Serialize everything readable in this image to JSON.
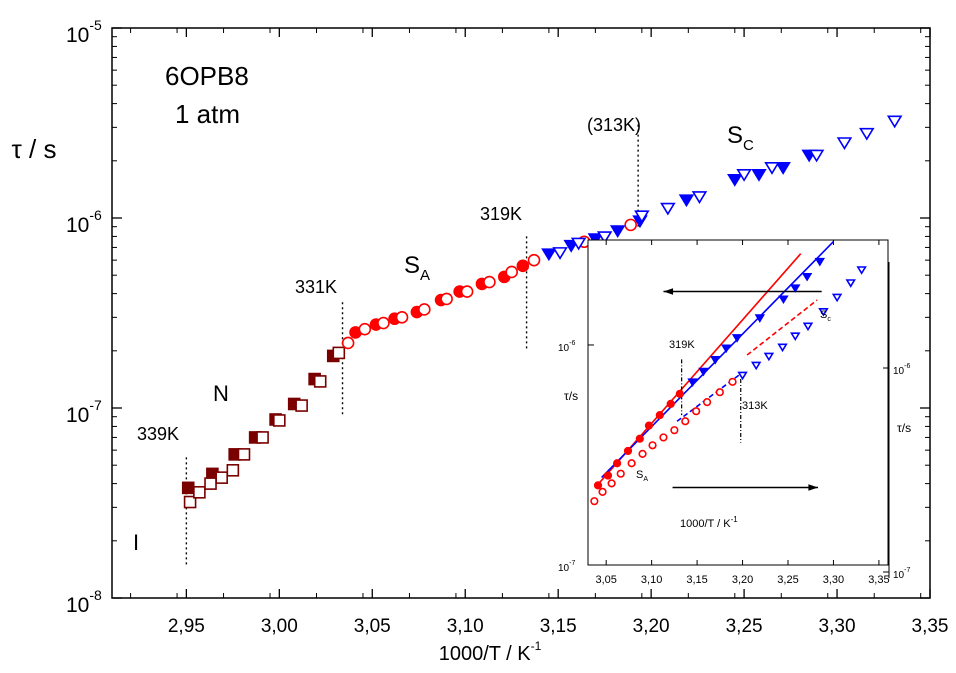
{
  "chart_data": [
    {
      "type": "scatter",
      "title": "",
      "xlabel_base": "1000/T / K",
      "xlabel_sup": "-1",
      "ylabel": "τ / s",
      "y_scale": "log",
      "xlim": [
        2.91,
        3.35
      ],
      "ylim": [
        1e-08,
        1e-05
      ],
      "x_ticks": [
        "2,95",
        "3,00",
        "3,05",
        "3,10",
        "3,15",
        "3,20",
        "3,25",
        "3,30",
        "3,35"
      ],
      "y_ticks": [
        {
          "base": "10",
          "exp": "-8",
          "value": 1e-08
        },
        {
          "base": "10",
          "exp": "-7",
          "value": 1e-07
        },
        {
          "base": "10",
          "exp": "-6",
          "value": 1e-06
        },
        {
          "base": "10",
          "exp": "-5",
          "value": 1e-05
        }
      ],
      "annotations": {
        "sample": "6OPB8",
        "pressure": "1 atm",
        "phase_I": "I",
        "phase_N": "N",
        "phase_SA_main": "S",
        "phase_SA_sub": "A",
        "phase_SC_main": "S",
        "phase_SC_sub": "C",
        "t339": "339K",
        "t331": "331K",
        "t319": "319K",
        "t313": "(313K)"
      },
      "transition_lines": [
        {
          "x": 2.95,
          "y_from": 1.5e-08,
          "y_to": 5.5e-08
        },
        {
          "x": 3.034,
          "y_from": 9e-08,
          "y_to": 3.6e-07
        },
        {
          "x": 3.133,
          "y_from": 2e-07,
          "y_to": 8e-07
        },
        {
          "x": 3.193,
          "y_from": 9e-07,
          "y_to": 3.1e-06
        }
      ],
      "series": [
        {
          "phase": "N",
          "color": "#7a0000",
          "marker": "square",
          "filled": true,
          "x": [
            2.951,
            2.964,
            2.976,
            2.987,
            2.998,
            3.008,
            3.019,
            3.029
          ],
          "y": [
            3.8e-08,
            4.5e-08,
            5.7e-08,
            7e-08,
            8.7e-08,
            1.05e-07,
            1.42e-07,
            1.88e-07
          ]
        },
        {
          "phase": "N",
          "color": "#7a0000",
          "marker": "square",
          "filled": false,
          "x": [
            2.952,
            2.957,
            2.963,
            2.969,
            2.975,
            2.981,
            2.991,
            3.0,
            3.012,
            3.022,
            3.032
          ],
          "y": [
            3.2e-08,
            3.6e-08,
            4e-08,
            4.3e-08,
            4.7e-08,
            5.7e-08,
            7e-08,
            8.6e-08,
            1.03e-07,
            1.38e-07,
            1.95e-07
          ]
        },
        {
          "phase": "SA",
          "color": "#ff0000",
          "marker": "circle",
          "filled": true,
          "x": [
            3.041,
            3.052,
            3.062,
            3.074,
            3.087,
            3.097,
            3.109,
            3.121,
            3.131
          ],
          "y": [
            2.5e-07,
            2.75e-07,
            2.95e-07,
            3.2e-07,
            3.7e-07,
            4.1e-07,
            4.5e-07,
            4.9e-07,
            5.6e-07
          ]
        },
        {
          "phase": "SA",
          "color": "#ff0000",
          "marker": "circle",
          "filled": false,
          "x": [
            3.037,
            3.046,
            3.056,
            3.066,
            3.078,
            3.09,
            3.101,
            3.113,
            3.125,
            3.137,
            3.164,
            3.189
          ],
          "y": [
            2.2e-07,
            2.6e-07,
            2.8e-07,
            3e-07,
            3.3e-07,
            3.75e-07,
            4.1e-07,
            4.6e-07,
            5.2e-07,
            6e-07,
            7.5e-07,
            9.2e-07
          ]
        },
        {
          "phase": "SC",
          "color": "#0000ff",
          "marker": "triangle-down",
          "filled": true,
          "x": [
            3.145,
            3.157,
            3.17,
            3.182,
            3.194,
            3.219,
            3.245,
            3.258,
            3.271,
            3.285
          ],
          "y": [
            6.5e-07,
            7.2e-07,
            7.8e-07,
            8.6e-07,
            9.7e-07,
            1.25e-06,
            1.6e-06,
            1.7e-06,
            1.85e-06,
            2.15e-06
          ]
        },
        {
          "phase": "SC",
          "color": "#0000ff",
          "marker": "triangle-down",
          "filled": false,
          "x": [
            3.151,
            3.161,
            3.175,
            3.195,
            3.209,
            3.226,
            3.25,
            3.265,
            3.289,
            3.304,
            3.316,
            3.331
          ],
          "y": [
            6.6e-07,
            7.4e-07,
            8e-07,
            1.03e-06,
            1.13e-06,
            1.3e-06,
            1.7e-06,
            1.85e-06,
            2.15e-06,
            2.5e-06,
            2.8e-06,
            3.25e-06
          ]
        }
      ]
    },
    {
      "type": "scatter",
      "title": "",
      "xlabel_base": "1000/T / K",
      "xlabel_sup": "-1",
      "ylabel_left": "τ/s",
      "ylabel_right": "τ/s",
      "y_scale": "log",
      "xlim": [
        3.03,
        3.36
      ],
      "ylim": [
        1e-07,
        3e-06
      ],
      "x_ticks": [
        "3,05",
        "3,10",
        "3,15",
        "3,20",
        "3,25",
        "3,30",
        "3,35"
      ],
      "y_ticks_left": [
        {
          "label": "10",
          "exp": "-7",
          "value": 1e-07
        },
        {
          "label": "10",
          "exp": "-6",
          "value": 1e-06
        }
      ],
      "y_ticks_right": [
        {
          "label": "10",
          "exp": "-7",
          "value": 1e-07
        },
        {
          "label": "10",
          "exp": "-6",
          "value": 1e-06
        }
      ],
      "annotations": {
        "t319": "319K",
        "t313": "313K",
        "sa_main": "S",
        "sa_sub": "A",
        "sc_main": "S",
        "sc_sub": "c"
      },
      "arrows": [
        {
          "direction": "left",
          "x_from": 3.287,
          "x_to": 3.113,
          "y": 1.75e-06
        },
        {
          "direction": "right",
          "x_from": 3.123,
          "x_to": 3.283,
          "y": 2.25e-07
        }
      ],
      "transition_lines": [
        {
          "x": 3.133,
          "y_from": 4.8e-07,
          "y_to": 8.6e-07
        },
        {
          "x": 3.198,
          "y_from": 3.6e-07,
          "y_to": 7e-07
        }
      ],
      "fit_lines": [
        {
          "color": "#ff0000",
          "dash": "solid",
          "x": [
            3.04,
            3.264
          ],
          "y": [
            2.3e-07,
            2.6e-06
          ]
        },
        {
          "color": "#0000ff",
          "dash": "solid",
          "x": [
            3.045,
            3.3
          ],
          "y": [
            2.5e-07,
            2.95e-06
          ]
        },
        {
          "color": "#ff0000",
          "dash": "dashed",
          "x": [
            3.205,
            3.282
          ],
          "y": [
            9e-07,
            1.6e-06
          ]
        },
        {
          "color": "#0000ff",
          "dash": "dashed",
          "x": [
            3.128,
            3.2
          ],
          "y": [
            4.5e-07,
            7.5e-07
          ]
        }
      ],
      "series": [
        {
          "color": "#ff0000",
          "marker": "circle",
          "filled": true,
          "axis": "left",
          "x": [
            3.041,
            3.052,
            3.062,
            3.074,
            3.087,
            3.097,
            3.109,
            3.121,
            3.131
          ],
          "y": [
            2.3e-07,
            2.55e-07,
            2.9e-07,
            3.3e-07,
            3.75e-07,
            4.3e-07,
            4.8e-07,
            5.4e-07,
            6e-07
          ]
        },
        {
          "color": "#0000ff",
          "marker": "triangle-down",
          "filled": true,
          "axis": "left",
          "x": [
            3.145,
            3.157,
            3.17,
            3.182,
            3.194,
            3.219,
            3.245,
            3.258,
            3.271,
            3.285
          ],
          "y": [
            6.8e-07,
            7.6e-07,
            8.6e-07,
            9.7e-07,
            1.08e-06,
            1.33e-06,
            1.62e-06,
            1.82e-06,
            2.05e-06,
            2.4e-06
          ]
        },
        {
          "color": "#ff0000",
          "marker": "circle",
          "filled": false,
          "axis": "right",
          "x": [
            3.037,
            3.046,
            3.056,
            3.066,
            3.078,
            3.09,
            3.101,
            3.113,
            3.125,
            3.137,
            3.149,
            3.161,
            3.175,
            3.189
          ],
          "y": [
            1.95e-07,
            2.15e-07,
            2.35e-07,
            2.6e-07,
            2.9e-07,
            3.2e-07,
            3.5e-07,
            3.8e-07,
            4.1e-07,
            4.5e-07,
            5e-07,
            5.5e-07,
            6.1e-07,
            6.8e-07
          ]
        },
        {
          "color": "#0000ff",
          "marker": "triangle-down",
          "filled": false,
          "axis": "right",
          "x": [
            3.2,
            3.215,
            3.229,
            3.244,
            3.258,
            3.272,
            3.289,
            3.304,
            3.319,
            3.331
          ],
          "y": [
            7.3e-07,
            8.1e-07,
            8.9e-07,
            9.8e-07,
            1.1e-06,
            1.22e-06,
            1.42e-06,
            1.65e-06,
            1.92e-06,
            2.2e-06
          ]
        }
      ]
    }
  ]
}
